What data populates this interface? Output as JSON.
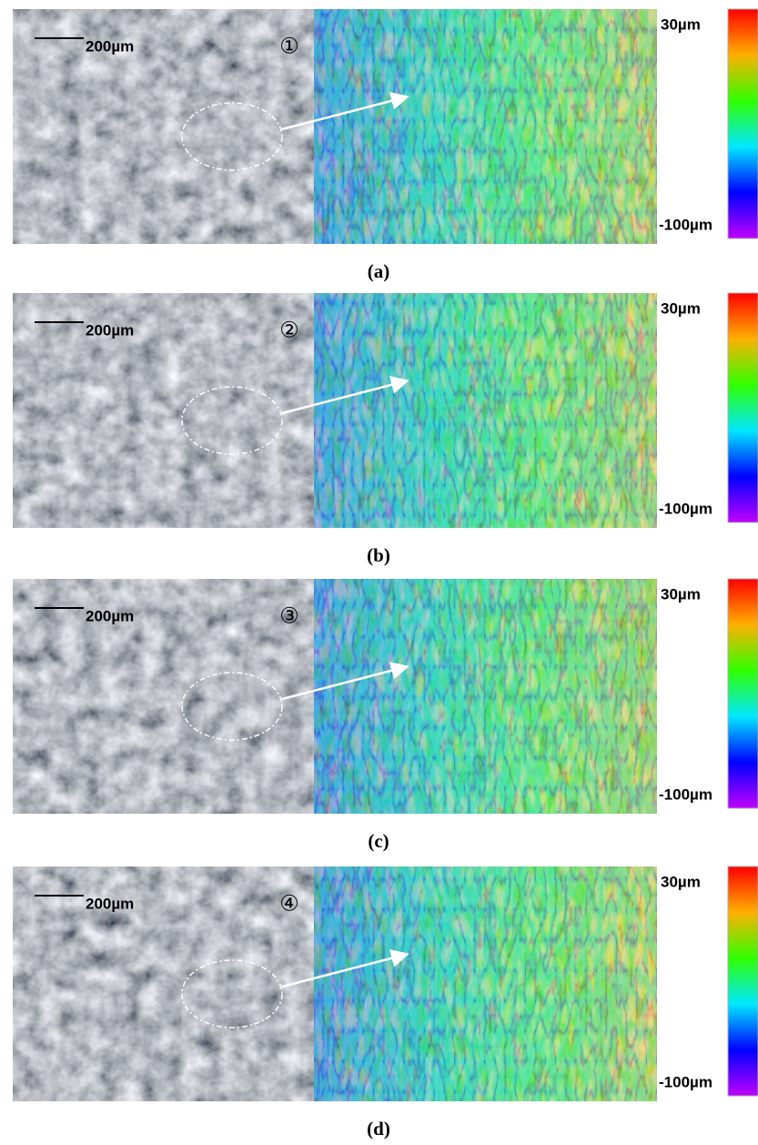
{
  "panels": [
    {
      "scale_label": "200µm",
      "marker": "①",
      "colorbar_top": "30µm",
      "colorbar_bottom": "-100µm",
      "caption": "(a)"
    },
    {
      "scale_label": "200µm",
      "marker": "②",
      "colorbar_top": "30µm",
      "colorbar_bottom": "-100µm",
      "caption": "(b)"
    },
    {
      "scale_label": "200µm",
      "marker": "③",
      "colorbar_top": "30µm",
      "colorbar_bottom": "-100µm",
      "caption": "(c)"
    },
    {
      "scale_label": "200µm",
      "marker": "④",
      "colorbar_top": "30µm",
      "colorbar_bottom": "-100µm",
      "caption": "(d)"
    }
  ]
}
